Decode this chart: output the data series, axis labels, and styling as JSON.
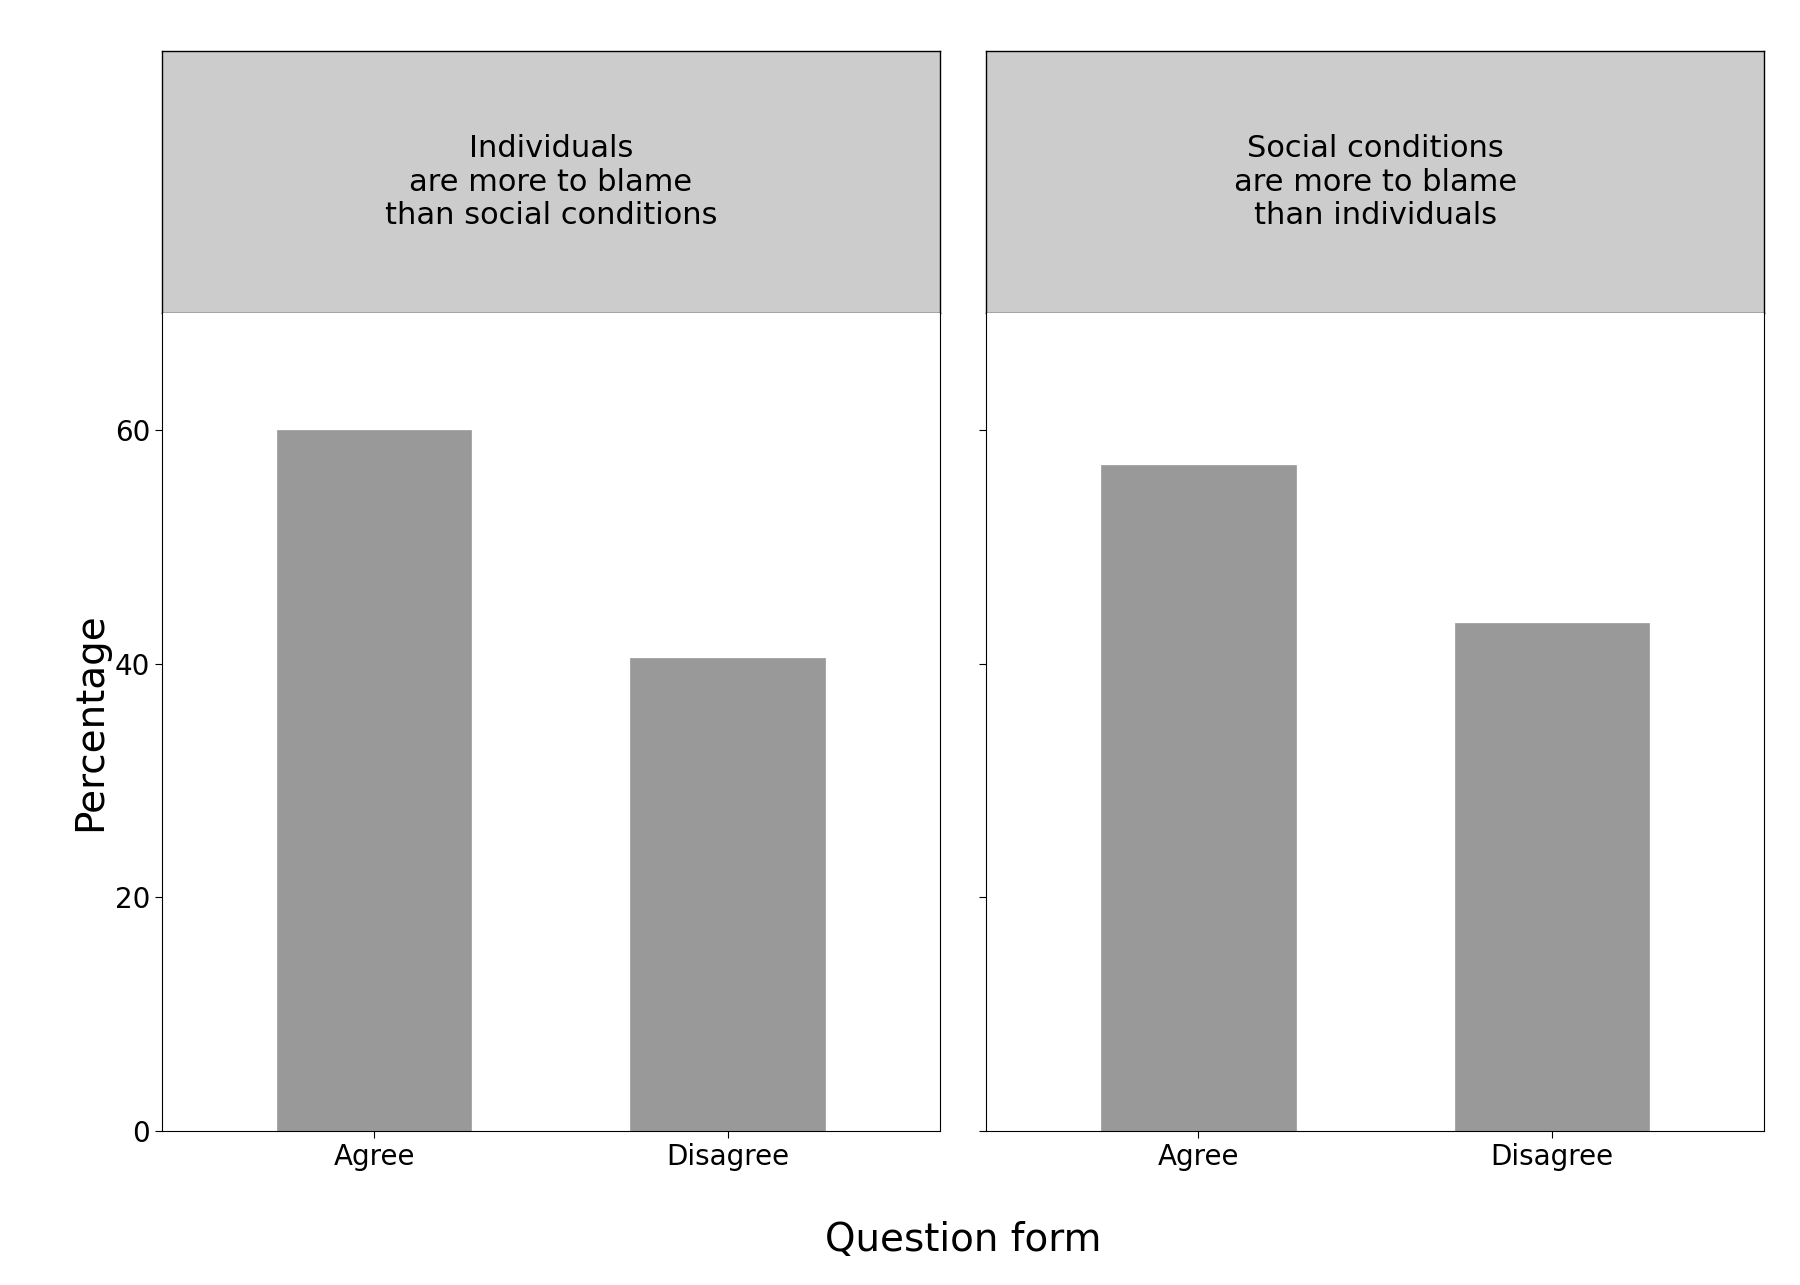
{
  "panel1_title": "Individuals\nare more to blame\nthan social conditions",
  "panel2_title": "Social conditions\nare more to blame\nthan individuals",
  "categories": [
    "Agree",
    "Disagree"
  ],
  "panel1_values": [
    60.0,
    40.5
  ],
  "panel2_values": [
    57.0,
    43.5
  ],
  "bar_color": "#999999",
  "bar_edgecolor": "#999999",
  "xlabel": "Question form",
  "ylabel": "Percentage",
  "ylim": [
    0,
    70
  ],
  "yticks": [
    0,
    20,
    40,
    60
  ],
  "strip_bg_color": "#cccccc",
  "plot_bg_color": "#ffffff",
  "title_fontsize": 22,
  "tick_fontsize": 20,
  "xlabel_fontsize": 28,
  "ylabel_fontsize": 28
}
